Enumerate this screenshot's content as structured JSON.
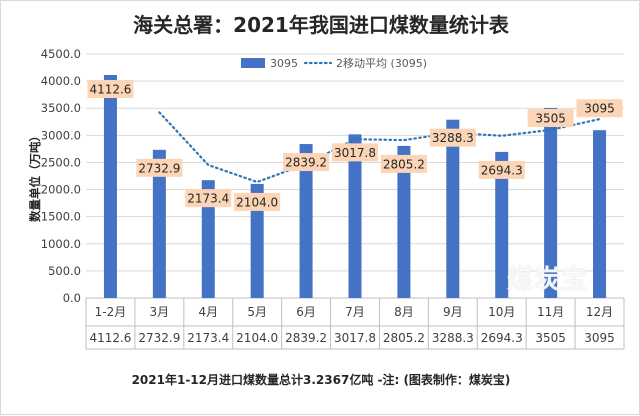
{
  "chart_data": {
    "type": "bar",
    "title": "海关总署：2021年我国进口煤数量统计表",
    "ylabel": "数量单位（万吨）",
    "ylim": [
      0,
      4500
    ],
    "yticks": [
      "0.0",
      "500.0",
      "1000.0",
      "1500.0",
      "2000.0",
      "2500.0",
      "3000.0",
      "3500.0",
      "4000.0",
      "4500.0"
    ],
    "categories": [
      "1-2月",
      "3月",
      "4月",
      "5月",
      "6月",
      "7月",
      "8月",
      "9月",
      "10月",
      "11月",
      "12月"
    ],
    "series": [
      {
        "name": "3095",
        "type": "bar",
        "values": [
          4112.6,
          2732.9,
          2173.4,
          2104.0,
          2839.2,
          3017.8,
          2805.2,
          3288.3,
          2694.3,
          3505,
          3095
        ],
        "labels": [
          "4112.6",
          "2732.9",
          "2173.4",
          "2104.0",
          "2839.2",
          "3017.8",
          "2805.2",
          "3288.3",
          "2694.3",
          "3505",
          "3095"
        ]
      },
      {
        "name": "2移动平均 (3095)",
        "type": "line",
        "style": "dotted",
        "values": [
          null,
          3422.75,
          2453.15,
          2138.7,
          2471.6,
          2928.5,
          2911.5,
          3046.75,
          2991.3,
          3099.65,
          3300
        ]
      }
    ],
    "table_row": [
      "4112.6",
      "2732.9",
      "2173.4",
      "2104.0",
      "2839.2",
      "3017.8",
      "2805.2",
      "3288.3",
      "2694.3",
      "3505",
      "3095"
    ],
    "grid": true,
    "legend_position": "top",
    "colors": {
      "bar": "#4472c4",
      "line": "#2e75b6",
      "label_bg": "#fbd5b5",
      "grid": "#d9d9d9"
    }
  },
  "footer": "2021年1-12月进口煤数量总计3.2367亿吨 -注:   (图表制作：煤炭宝)",
  "watermark": "煤炭宝"
}
